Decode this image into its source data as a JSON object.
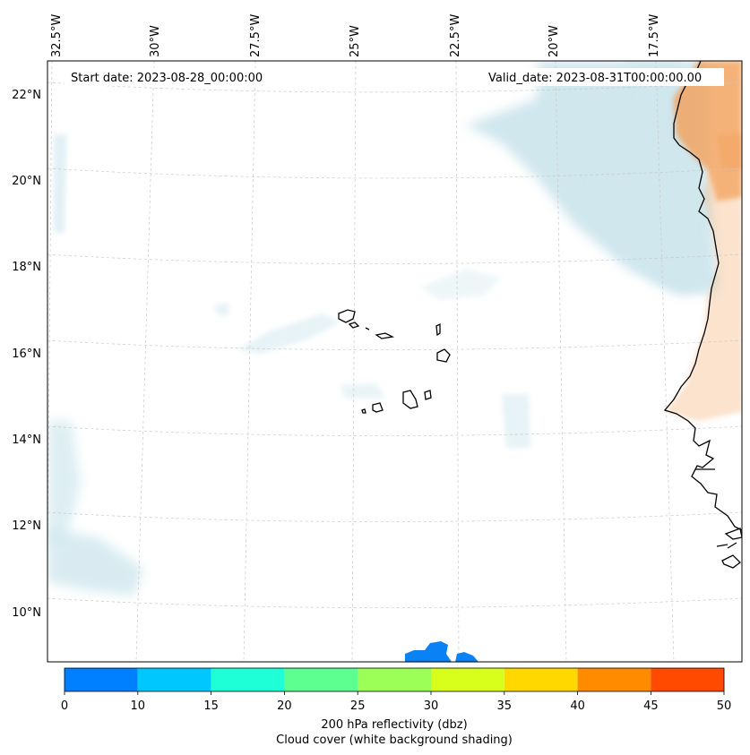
{
  "map": {
    "start_date_label": "Start date: 2023-08-28_00:00:00",
    "valid_date_label": "Valid_date: 2023-08-31T00:00:00.00",
    "longitude_labels": [
      "32.5°W",
      "30°W",
      "27.5°W",
      "25°W",
      "22.5°W",
      "20°W",
      "17.5°W"
    ],
    "latitude_labels": [
      "22°N",
      "20°N",
      "18°N",
      "16°N",
      "14°N",
      "12°N",
      "10°N"
    ],
    "land_shading_color": "#f2a25c",
    "cloud_shading_color": "#a9d3e0",
    "echo_color": "#0a82f5",
    "coastline_color": "#000000",
    "gridline_color": "#c8c8c8"
  },
  "colorbar": {
    "ticks": [
      "0",
      "10",
      "15",
      "20",
      "25",
      "30",
      "35",
      "40",
      "45",
      "50"
    ],
    "colors": [
      "#0080ff",
      "#00c8ff",
      "#1effd8",
      "#5cff90",
      "#9cff58",
      "#d8ff1c",
      "#ffd800",
      "#ff8c00",
      "#ff4a00"
    ],
    "label_line1": "200 hPa reflectivity (dbz)",
    "label_line2": "Cloud cover (white background shading)"
  }
}
